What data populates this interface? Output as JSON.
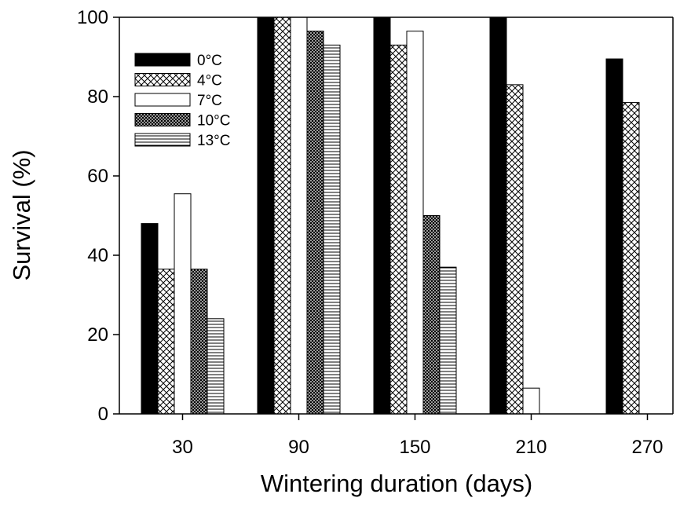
{
  "chart_data": {
    "type": "bar",
    "title": "",
    "xlabel": "Wintering duration (days)",
    "ylabel": "Survival (%)",
    "ylim": [
      0,
      100
    ],
    "yticks": [
      "0",
      "20",
      "40",
      "60",
      "80",
      "100"
    ],
    "categories": [
      "30",
      "90",
      "150",
      "210",
      "270"
    ],
    "grid": false,
    "legend_position": "top-left",
    "series": [
      {
        "name": "0°C",
        "values": [
          48,
          100,
          100,
          100,
          89.5
        ]
      },
      {
        "name": "4°C",
        "values": [
          36.5,
          100,
          93,
          83,
          78.5
        ]
      },
      {
        "name": "7°C",
        "values": [
          55.5,
          100,
          96.5,
          6.5,
          0
        ]
      },
      {
        "name": "10°C",
        "values": [
          36.5,
          96.5,
          50,
          0,
          0
        ]
      },
      {
        "name": "13°C",
        "values": [
          24,
          93,
          37,
          0,
          0
        ]
      }
    ]
  }
}
